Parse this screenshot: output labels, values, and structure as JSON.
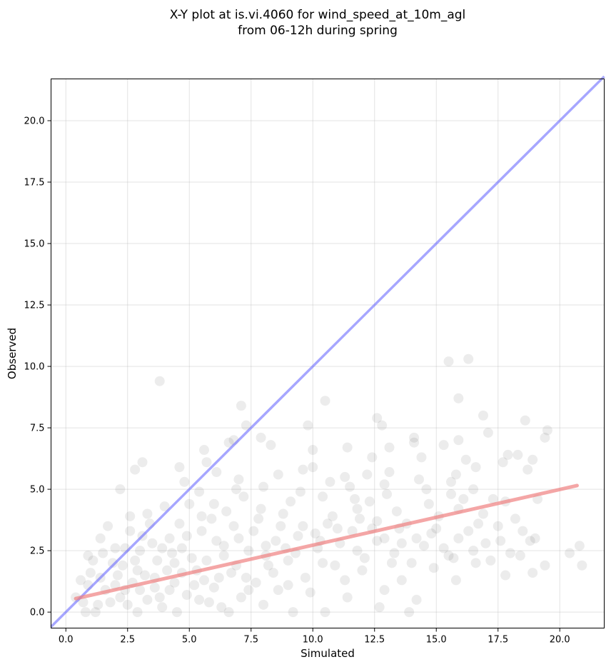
{
  "chart_data": {
    "type": "scatter",
    "title_lines": [
      "X-Y plot at is.vi.4060 for wind_speed_at_10m_agl",
      "from 06-12h during spring"
    ],
    "xlabel": "Simulated",
    "ylabel": "Observed",
    "xlim": [
      -0.6,
      21.8
    ],
    "ylim": [
      -0.65,
      21.7
    ],
    "xticks": [
      0.0,
      2.5,
      5.0,
      7.5,
      10.0,
      12.5,
      15.0,
      17.5,
      20.0
    ],
    "xtick_labels": [
      "0.0",
      "2.5",
      "5.0",
      "7.5",
      "10.0",
      "12.5",
      "15.0",
      "17.5",
      "20.0"
    ],
    "yticks": [
      0.0,
      2.5,
      5.0,
      7.5,
      10.0,
      12.5,
      15.0,
      17.5,
      20.0
    ],
    "ytick_labels": [
      "0.0",
      "2.5",
      "5.0",
      "7.5",
      "10.0",
      "12.5",
      "15.0",
      "17.5",
      "20.0"
    ],
    "grid": true,
    "point_color": "#000000",
    "identity_line": {
      "color": "#6b6bff",
      "from": [
        -0.6,
        -0.6
      ],
      "to": [
        21.8,
        21.8
      ]
    },
    "fit_line": {
      "color": "#f08080",
      "from": [
        0.4,
        0.55
      ],
      "to": [
        20.7,
        5.15
      ]
    },
    "points": [
      [
        3.8,
        9.4
      ],
      [
        7.1,
        8.4
      ],
      [
        10.5,
        8.6
      ],
      [
        12.6,
        7.9
      ],
      [
        12.8,
        7.6
      ],
      [
        7.3,
        7.6
      ],
      [
        9.8,
        7.6
      ],
      [
        14.1,
        7.1
      ],
      [
        14.1,
        6.9
      ],
      [
        15.9,
        7.0
      ],
      [
        15.5,
        10.2
      ],
      [
        16.3,
        10.3
      ],
      [
        15.9,
        8.7
      ],
      [
        16.9,
        8.0
      ],
      [
        17.1,
        7.3
      ],
      [
        18.6,
        7.8
      ],
      [
        19.5,
        7.4
      ],
      [
        19.4,
        7.1
      ],
      [
        18.9,
        6.2
      ],
      [
        18.3,
        6.4
      ],
      [
        17.9,
        6.4
      ],
      [
        17.7,
        6.1
      ],
      [
        18.7,
        5.8
      ],
      [
        16.2,
        6.2
      ],
      [
        16.6,
        5.9
      ],
      [
        15.8,
        5.6
      ],
      [
        15.3,
        6.8
      ],
      [
        14.4,
        6.3
      ],
      [
        13.1,
        6.7
      ],
      [
        12.4,
        6.3
      ],
      [
        11.4,
        6.7
      ],
      [
        10.0,
        6.6
      ],
      [
        9.6,
        5.8
      ],
      [
        8.3,
        6.8
      ],
      [
        7.9,
        7.1
      ],
      [
        5.6,
        6.6
      ],
      [
        6.8,
        7.0
      ],
      [
        6.6,
        6.9
      ],
      [
        5.7,
        6.1
      ],
      [
        4.6,
        5.9
      ],
      [
        2.2,
        5.0
      ],
      [
        2.8,
        5.8
      ],
      [
        3.1,
        6.1
      ],
      [
        6.1,
        5.7
      ],
      [
        7.0,
        5.4
      ],
      [
        8.6,
        5.6
      ],
      [
        10.0,
        5.9
      ],
      [
        11.3,
        5.5
      ],
      [
        12.2,
        5.6
      ],
      [
        13.1,
        5.7
      ],
      [
        14.3,
        5.4
      ],
      [
        15.6,
        5.3
      ],
      [
        16.5,
        5.0
      ],
      [
        17.3,
        4.6
      ],
      [
        17.8,
        4.5
      ],
      [
        18.2,
        3.8
      ],
      [
        18.5,
        3.3
      ],
      [
        18.8,
        2.9
      ],
      [
        19.1,
        4.6
      ],
      [
        20.4,
        2.4
      ],
      [
        20.8,
        2.7
      ],
      [
        20.9,
        1.9
      ],
      [
        19.4,
        1.9
      ],
      [
        18.9,
        1.6
      ],
      [
        17.8,
        1.5
      ],
      [
        17.2,
        2.1
      ],
      [
        16.5,
        2.5
      ],
      [
        15.5,
        2.3
      ],
      [
        14.9,
        1.8
      ],
      [
        13.6,
        1.3
      ],
      [
        12.9,
        0.9
      ],
      [
        12.7,
        0.2
      ],
      [
        11.4,
        0.6
      ],
      [
        10.5,
        0.0
      ],
      [
        9.2,
        0.0
      ],
      [
        8.0,
        0.3
      ],
      [
        7.4,
        0.9
      ],
      [
        6.6,
        0.0
      ],
      [
        14.2,
        0.5
      ],
      [
        13.9,
        0.0
      ],
      [
        15.8,
        1.3
      ],
      [
        14.8,
        3.2
      ],
      [
        13.4,
        4.1
      ],
      [
        12.6,
        3.7
      ],
      [
        11.8,
        4.2
      ],
      [
        11.1,
        2.8
      ],
      [
        10.6,
        3.6
      ],
      [
        9.4,
        3.1
      ],
      [
        8.8,
        4.0
      ],
      [
        8.1,
        2.7
      ],
      [
        7.6,
        3.3
      ],
      [
        7.2,
        4.7
      ],
      [
        6.5,
        4.1
      ],
      [
        6.1,
        2.9
      ],
      [
        5.5,
        3.3
      ],
      [
        5.0,
        4.4
      ],
      [
        4.7,
        2.6
      ],
      [
        4.2,
        3.0
      ],
      [
        3.7,
        2.1
      ],
      [
        3.4,
        3.6
      ],
      [
        3.0,
        2.5
      ],
      [
        2.6,
        3.3
      ],
      [
        2.3,
        1.9
      ],
      [
        2.0,
        2.6
      ],
      [
        1.7,
        3.5
      ],
      [
        1.4,
        1.4
      ],
      [
        1.1,
        2.1
      ],
      [
        0.9,
        1.1
      ],
      [
        0.7,
        0.4
      ],
      [
        0.4,
        0.6
      ],
      [
        1.2,
        0.0
      ],
      [
        1.8,
        0.4
      ],
      [
        2.4,
        0.9
      ],
      [
        2.9,
        0.0
      ],
      [
        3.3,
        0.5
      ],
      [
        3.9,
        0.2
      ],
      [
        4.4,
        1.2
      ],
      [
        4.9,
        0.7
      ],
      [
        5.3,
        1.7
      ],
      [
        5.8,
        0.4
      ],
      [
        6.2,
        1.4
      ],
      [
        6.9,
        1.9
      ],
      [
        7.7,
        1.2
      ],
      [
        8.4,
        1.6
      ],
      [
        9.0,
        2.1
      ],
      [
        9.7,
        1.4
      ],
      [
        10.2,
        2.6
      ],
      [
        10.9,
        1.9
      ],
      [
        11.6,
        3.3
      ],
      [
        12.1,
        2.2
      ],
      [
        12.9,
        3.0
      ],
      [
        13.3,
        2.4
      ],
      [
        13.8,
        3.6
      ],
      [
        14.5,
        2.7
      ],
      [
        15.1,
        3.9
      ],
      [
        15.9,
        3.0
      ],
      [
        16.7,
        3.6
      ],
      [
        17.5,
        3.5
      ],
      [
        16.1,
        4.6
      ],
      [
        14.7,
        4.4
      ],
      [
        13.0,
        4.8
      ],
      [
        12.3,
        4.5
      ],
      [
        11.5,
        5.1
      ],
      [
        10.4,
        4.7
      ],
      [
        9.1,
        4.5
      ],
      [
        8.7,
        3.5
      ],
      [
        7.9,
        4.2
      ],
      [
        7.0,
        3.0
      ],
      [
        6.4,
        2.3
      ],
      [
        5.9,
        3.8
      ],
      [
        5.1,
        2.2
      ],
      [
        4.6,
        3.6
      ],
      [
        4.1,
        1.7
      ],
      [
        3.6,
        1.0
      ],
      [
        3.2,
        1.5
      ],
      [
        2.7,
        1.2
      ],
      [
        2.2,
        0.6
      ],
      [
        1.6,
        0.9
      ],
      [
        1.3,
        0.3
      ],
      [
        0.8,
        0.0
      ],
      [
        2.1,
        1.5
      ],
      [
        2.8,
        2.1
      ],
      [
        3.5,
        2.8
      ],
      [
        4.3,
        2.4
      ],
      [
        5.2,
        1.1
      ],
      [
        5.7,
        2.1
      ],
      [
        6.7,
        1.6
      ],
      [
        7.4,
        2.5
      ],
      [
        8.2,
        1.9
      ],
      [
        9.3,
        2.4
      ],
      [
        10.1,
        3.2
      ],
      [
        10.8,
        3.9
      ],
      [
        11.9,
        3.8
      ],
      [
        12.6,
        2.9
      ],
      [
        13.5,
        3.4
      ],
      [
        14.0,
        2.0
      ],
      [
        15.3,
        2.6
      ],
      [
        16.3,
        3.3
      ],
      [
        17.0,
        2.8
      ],
      [
        18.0,
        2.4
      ],
      [
        1.0,
        1.6
      ],
      [
        1.5,
        2.4
      ],
      [
        0.6,
        1.3
      ],
      [
        2.5,
        0.3
      ],
      [
        3.0,
        0.9
      ],
      [
        3.8,
        0.6
      ],
      [
        4.5,
        0.0
      ],
      [
        5.4,
        0.5
      ],
      [
        6.0,
        1.0
      ],
      [
        6.3,
        0.2
      ],
      [
        4.0,
        4.3
      ],
      [
        3.3,
        4.0
      ],
      [
        2.6,
        3.9
      ],
      [
        4.8,
        5.3
      ],
      [
        5.4,
        4.9
      ],
      [
        6.9,
        5.0
      ],
      [
        8.0,
        5.1
      ],
      [
        9.5,
        4.9
      ],
      [
        10.7,
        5.3
      ],
      [
        11.7,
        4.6
      ],
      [
        12.9,
        5.2
      ],
      [
        14.6,
        5.0
      ],
      [
        15.9,
        4.2
      ],
      [
        16.9,
        4.0
      ],
      [
        13.6,
        2.8
      ],
      [
        11.3,
        1.3
      ],
      [
        9.9,
        0.8
      ],
      [
        8.6,
        0.9
      ],
      [
        7.1,
        0.6
      ],
      [
        15.6,
        4.8
      ],
      [
        12.0,
        1.7
      ],
      [
        10.4,
        2.0
      ],
      [
        9.0,
        1.1
      ],
      [
        8.5,
        2.9
      ],
      [
        7.8,
        3.8
      ],
      [
        6.8,
        3.5
      ],
      [
        6.0,
        4.4
      ],
      [
        5.5,
        3.9
      ],
      [
        4.9,
        3.1
      ],
      [
        4.4,
        2.0
      ],
      [
        3.9,
        2.6
      ],
      [
        3.1,
        3.1
      ],
      [
        2.4,
        2.6
      ],
      [
        1.9,
        2.0
      ],
      [
        1.4,
        3.0
      ],
      [
        0.9,
        2.3
      ],
      [
        2.0,
        1.1
      ],
      [
        2.9,
        1.7
      ],
      [
        3.6,
        1.4
      ],
      [
        4.2,
        0.9
      ],
      [
        4.7,
        1.6
      ],
      [
        5.6,
        1.3
      ],
      [
        6.4,
        2.7
      ],
      [
        7.3,
        1.4
      ],
      [
        8.1,
        2.3
      ],
      [
        8.9,
        2.6
      ],
      [
        9.6,
        3.5
      ],
      [
        10.3,
        2.9
      ],
      [
        11.0,
        3.4
      ],
      [
        11.8,
        2.5
      ],
      [
        12.4,
        3.4
      ],
      [
        13.2,
        2.0
      ],
      [
        14.2,
        3.0
      ],
      [
        15.0,
        3.4
      ],
      [
        15.7,
        2.2
      ],
      [
        16.6,
        2.0
      ],
      [
        17.6,
        2.9
      ],
      [
        18.4,
        2.3
      ],
      [
        19.0,
        3.0
      ]
    ]
  }
}
